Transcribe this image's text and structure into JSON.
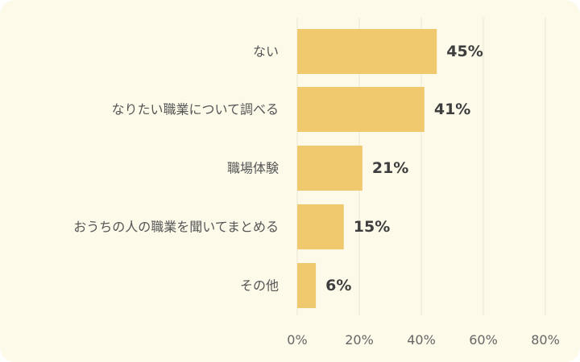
{
  "chart_data": {
    "type": "bar",
    "orientation": "horizontal",
    "categories": [
      "ない",
      "なりたい職業について調べる",
      "職場体験",
      "おうちの人の職業を聞いてまとめる",
      "その他"
    ],
    "values": [
      45,
      41,
      21,
      15,
      6
    ],
    "value_labels": [
      "45%",
      "41%",
      "21%",
      "15%",
      "6%"
    ],
    "xlim": [
      0,
      80
    ],
    "xticks": [
      0,
      20,
      40,
      60,
      80
    ],
    "xtick_labels": [
      "0%",
      "20%",
      "40%",
      "60%",
      "80%"
    ],
    "grid": true,
    "colors": {
      "background": "#fdfaea",
      "bar": "#f0c96f",
      "grid": "#e9e5d3"
    }
  }
}
